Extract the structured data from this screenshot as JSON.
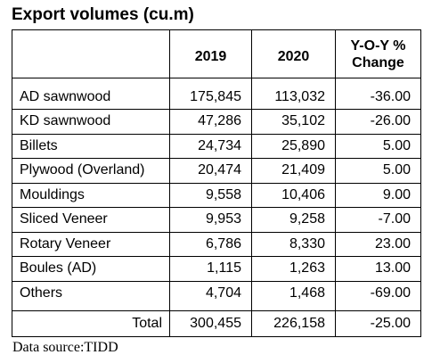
{
  "title": "Export volumes (cu.m)",
  "headers": {
    "col_2019": "2019",
    "col_2020": "2020",
    "col_change_line1": "Y-O-Y %",
    "col_change_line2": "Change"
  },
  "rows": [
    {
      "name": "AD sawnwood",
      "v2019": "175,845",
      "v2020": "113,032",
      "change": "-36.00"
    },
    {
      "name": "KD sawnwood",
      "v2019": "47,286",
      "v2020": "35,102",
      "change": "-26.00"
    },
    {
      "name": "Billets",
      "v2019": "24,734",
      "v2020": "25,890",
      "change": "5.00"
    },
    {
      "name": "Plywood (Overland)",
      "v2019": "20,474",
      "v2020": "21,409",
      "change": "5.00"
    },
    {
      "name": "Mouldings",
      "v2019": "9,558",
      "v2020": "10,406",
      "change": "9.00"
    },
    {
      "name": "Sliced Veneer",
      "v2019": "9,953",
      "v2020": "9,258",
      "change": "-7.00"
    },
    {
      "name": "Rotary Veneer",
      "v2019": "6,786",
      "v2020": "8,330",
      "change": "23.00"
    },
    {
      "name": "Boules (AD)",
      "v2019": "1,115",
      "v2020": "1,263",
      "change": "13.00"
    },
    {
      "name": "Others",
      "v2019": "4,704",
      "v2020": "1,468",
      "change": "-69.00"
    }
  ],
  "total": {
    "label": "Total",
    "v2019": "300,455",
    "v2020": "226,158",
    "change": "-25.00"
  },
  "source": "Data source:TIDD"
}
